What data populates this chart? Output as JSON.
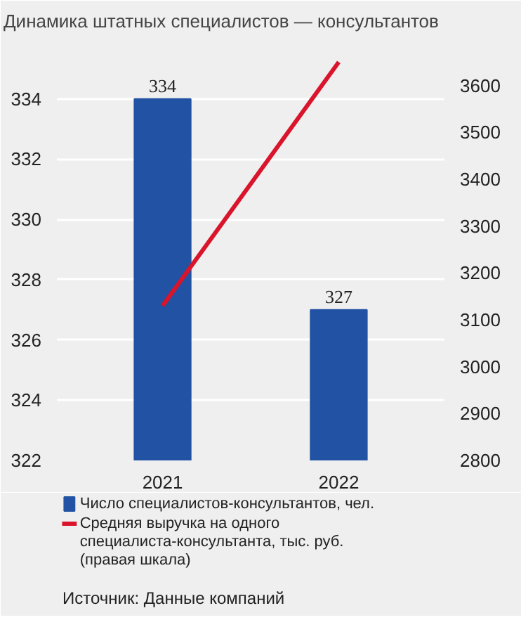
{
  "chart_data": {
    "type": "bar",
    "title": "Динамика штатных специалистов — консультантов",
    "categories": [
      "2021",
      "2022"
    ],
    "series": [
      {
        "name": "Число специалистов-консультантов, чел.",
        "color": "#2152a3",
        "values": [
          334,
          327
        ],
        "value_labels": [
          "334",
          "327"
        ]
      },
      {
        "name": "Средняя выручка на одного специалиста-консультанта, тыс. руб. (правая шкала)",
        "type": "line",
        "axis": "y2",
        "color": "#d9142b",
        "values": [
          3130,
          3650
        ]
      }
    ],
    "ylim": [
      322,
      336
    ],
    "yticks": [
      322,
      324,
      326,
      328,
      330,
      332,
      334
    ],
    "y2lim": [
      2800,
      3700
    ],
    "y2ticks": [
      2800,
      2900,
      3000,
      3100,
      3200,
      3300,
      3400,
      3500,
      3600
    ],
    "grid": "y",
    "legend": "bottom",
    "annotations": [
      "Источник: Данные компаний"
    ]
  }
}
